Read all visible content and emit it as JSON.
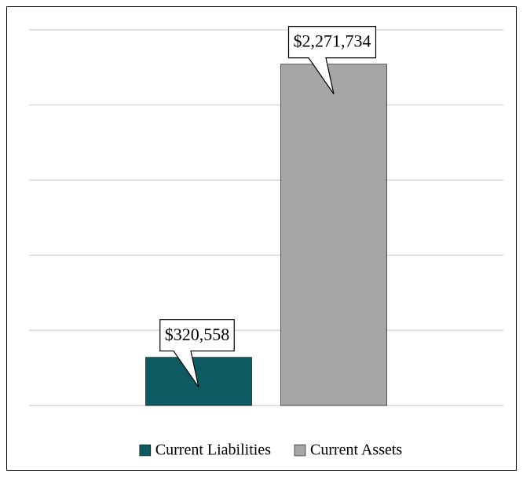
{
  "chart_data": {
    "type": "bar",
    "categories": [
      null
    ],
    "series": [
      {
        "name": "Current Liabilities",
        "color": "#0e5a63",
        "values": [
          320558
        ],
        "value_labels": [
          "$320,558"
        ]
      },
      {
        "name": "Current Assets",
        "color": "#a6a6a6",
        "values": [
          2271734
        ],
        "value_labels": [
          "$2,271,734"
        ]
      }
    ],
    "ylim": [
      0,
      2500000
    ],
    "yticks": [
      0,
      500000,
      1000000,
      1500000,
      2000000,
      2500000
    ],
    "grid": true,
    "legend": "bottom"
  }
}
